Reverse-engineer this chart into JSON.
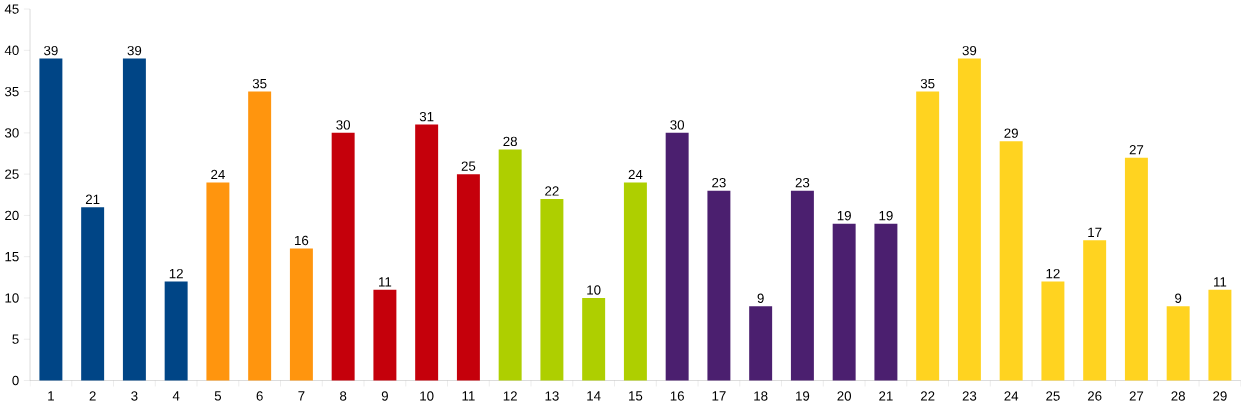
{
  "chart_data": {
    "type": "bar",
    "categories": [
      "1",
      "2",
      "3",
      "4",
      "5",
      "6",
      "7",
      "8",
      "9",
      "10",
      "11",
      "12",
      "13",
      "14",
      "15",
      "16",
      "17",
      "18",
      "19",
      "20",
      "21",
      "22",
      "23",
      "24",
      "25",
      "26",
      "27",
      "28",
      "29"
    ],
    "values": [
      39,
      21,
      39,
      12,
      24,
      35,
      16,
      30,
      11,
      31,
      25,
      28,
      22,
      10,
      24,
      30,
      23,
      9,
      23,
      19,
      19,
      35,
      39,
      29,
      12,
      17,
      27,
      9,
      11
    ],
    "colors": [
      "#004586",
      "#004586",
      "#004586",
      "#004586",
      "#ff950e",
      "#ff950e",
      "#ff950e",
      "#c5000b",
      "#c5000b",
      "#c5000b",
      "#c5000b",
      "#aecf00",
      "#aecf00",
      "#aecf00",
      "#aecf00",
      "#4b1f6f",
      "#4b1f6f",
      "#4b1f6f",
      "#4b1f6f",
      "#4b1f6f",
      "#4b1f6f",
      "#ffd320",
      "#ffd320",
      "#ffd320",
      "#ffd320",
      "#ffd320",
      "#ffd320",
      "#ffd320",
      "#ffd320"
    ],
    "ylim": [
      0,
      45
    ],
    "yticks": [
      0,
      5,
      10,
      15,
      20,
      25,
      30,
      35,
      40,
      45
    ],
    "data_labels": true,
    "grid": false
  }
}
